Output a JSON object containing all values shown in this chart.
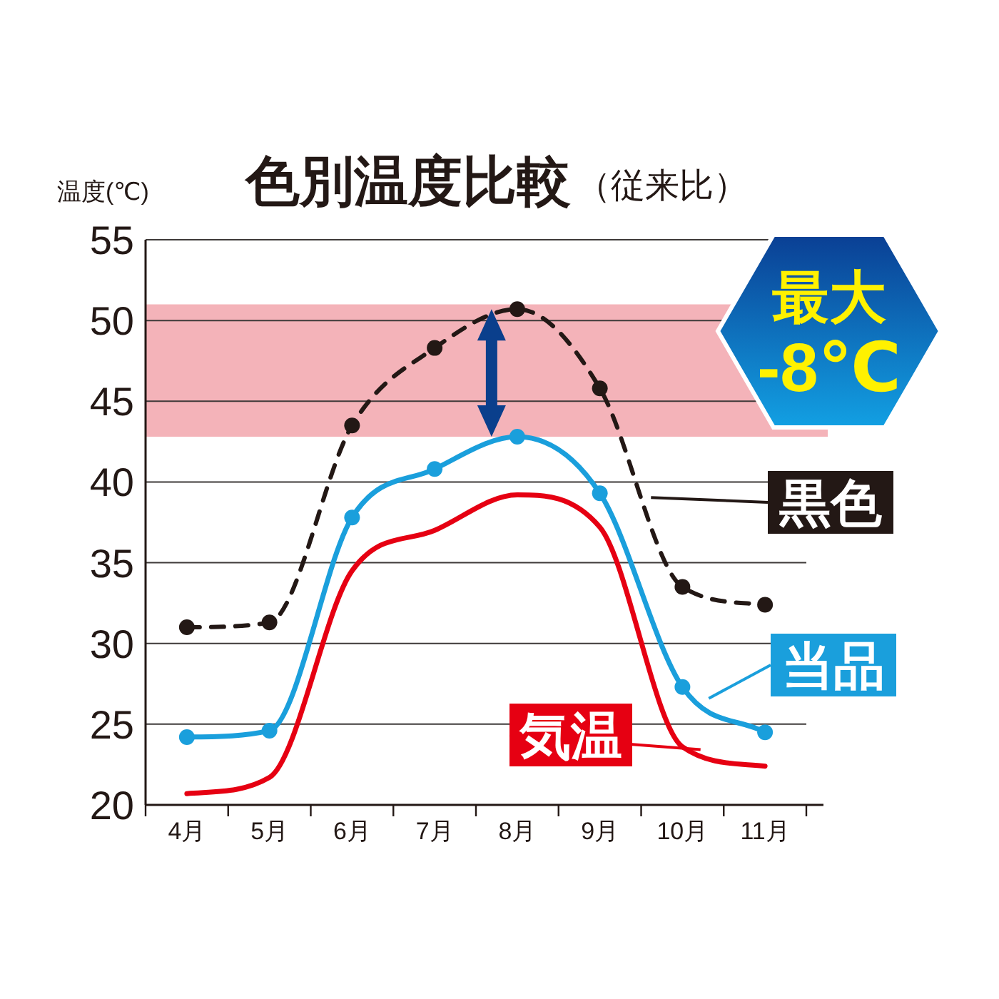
{
  "chart_data": {
    "type": "line",
    "title": "色別温度比較",
    "subtitle": "（従来比）",
    "ylabel": "温度(℃)",
    "categories": [
      "4月",
      "5月",
      "6月",
      "7月",
      "8月",
      "9月",
      "10月",
      "11月"
    ],
    "series": [
      {
        "name": "黒色",
        "color": "#231815",
        "line_style": "dashed",
        "marker": "circle",
        "values": [
          31.0,
          31.3,
          43.5,
          48.3,
          50.7,
          45.8,
          33.5,
          32.4
        ]
      },
      {
        "name": "当品",
        "color": "#1a9fdc",
        "line_style": "solid",
        "marker": "circle",
        "values": [
          24.2,
          24.6,
          37.8,
          40.8,
          42.8,
          39.3,
          27.3,
          24.5
        ]
      },
      {
        "name": "気温",
        "color": "#e60012",
        "line_style": "solid",
        "marker": "none",
        "values": [
          20.7,
          21.7,
          34.5,
          37.0,
          39.2,
          37.2,
          23.6,
          22.4
        ]
      }
    ],
    "ylim": [
      20,
      55
    ],
    "yticks": [
      20,
      25,
      30,
      35,
      40,
      45,
      50,
      55
    ],
    "grid": "y",
    "legend": "right",
    "bands": [
      {
        "axis": "y",
        "from": 42.8,
        "to": 51,
        "color": "#f4b3b9"
      }
    ],
    "annotations": [
      "最大",
      "-8℃"
    ]
  }
}
